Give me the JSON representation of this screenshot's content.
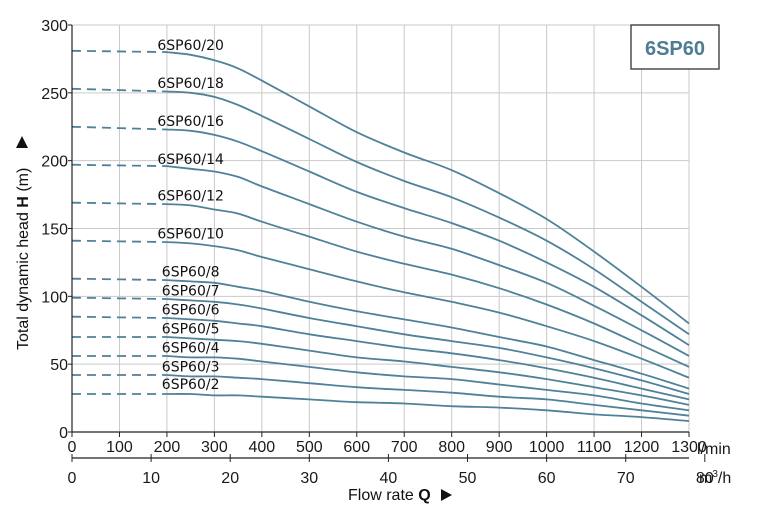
{
  "chart_data": {
    "type": "line",
    "title": "6SP60",
    "ylabel_prefix": "Total dynamic head ",
    "ylabel_bold": "H",
    "ylabel_suffix": " (m)",
    "xlabel_prefix": "Flow rate ",
    "xlabel_bold": "Q",
    "x_unit_lmin": "l/min",
    "x_unit_m3h_base": "m",
    "x_unit_m3h_sup": "3",
    "x_unit_m3h_tail": "/h",
    "xlim_lmin": [
      0,
      1300
    ],
    "ylim": [
      0,
      300
    ],
    "yticks": [
      0,
      50,
      100,
      150,
      200,
      250,
      300
    ],
    "xticks_lmin": [
      0,
      100,
      200,
      300,
      400,
      500,
      600,
      700,
      800,
      900,
      1000,
      1100,
      1200,
      1300
    ],
    "xticks_m3h": [
      0,
      10,
      20,
      30,
      40,
      50,
      60,
      70,
      80
    ],
    "grid": true,
    "line_color": "#4f8198",
    "dashed_until_lmin": 200,
    "series": [
      {
        "name": "6SP60/20",
        "x": [
          0,
          200,
          250,
          300,
          350,
          400,
          500,
          600,
          700,
          800,
          900,
          1000,
          1100,
          1200,
          1300
        ],
        "y": [
          281,
          280,
          278,
          274,
          268,
          259,
          240,
          221,
          206,
          193,
          176,
          157,
          133,
          107,
          80
        ]
      },
      {
        "name": "6SP60/18",
        "x": [
          0,
          200,
          250,
          300,
          350,
          400,
          500,
          600,
          700,
          800,
          900,
          1000,
          1100,
          1200,
          1300
        ],
        "y": [
          253,
          251,
          250,
          247,
          241,
          233,
          216,
          199,
          185,
          173,
          158,
          141,
          120,
          96,
          72
        ]
      },
      {
        "name": "6SP60/16",
        "x": [
          0,
          200,
          250,
          300,
          350,
          400,
          500,
          600,
          700,
          800,
          900,
          1000,
          1100,
          1200,
          1300
        ],
        "y": [
          225,
          223,
          222,
          219,
          214,
          207,
          192,
          177,
          165,
          154,
          141,
          125,
          107,
          86,
          64
        ]
      },
      {
        "name": "6SP60/14",
        "x": [
          0,
          200,
          250,
          300,
          350,
          400,
          500,
          600,
          700,
          800,
          900,
          1000,
          1100,
          1200,
          1300
        ],
        "y": [
          197,
          196,
          194,
          192,
          188,
          181,
          168,
          155,
          144,
          135,
          123,
          110,
          93,
          75,
          56
        ]
      },
      {
        "name": "6SP60/12",
        "x": [
          0,
          200,
          250,
          300,
          350,
          400,
          500,
          600,
          700,
          800,
          900,
          1000,
          1100,
          1200,
          1300
        ],
        "y": [
          169,
          168,
          167,
          164,
          161,
          155,
          144,
          133,
          124,
          116,
          106,
          94,
          80,
          64,
          48
        ]
      },
      {
        "name": "6SP60/10",
        "x": [
          0,
          200,
          250,
          300,
          350,
          400,
          500,
          600,
          700,
          800,
          900,
          1000,
          1100,
          1200,
          1300
        ],
        "y": [
          141,
          140,
          139,
          137,
          134,
          129,
          120,
          111,
          103,
          96,
          88,
          78,
          67,
          54,
          40
        ]
      },
      {
        "name": "6SP60/8",
        "x": [
          0,
          200,
          250,
          300,
          350,
          400,
          500,
          600,
          700,
          800,
          900,
          1000,
          1100,
          1200,
          1300
        ],
        "y": [
          113,
          112,
          111,
          110,
          107,
          104,
          96,
          89,
          83,
          77,
          70,
          63,
          53,
          43,
          32
        ]
      },
      {
        "name": "6SP60/7",
        "x": [
          0,
          200,
          250,
          300,
          350,
          400,
          500,
          600,
          700,
          800,
          900,
          1000,
          1100,
          1200,
          1300
        ],
        "y": [
          99,
          98,
          97,
          96,
          94,
          91,
          84,
          78,
          72,
          67,
          62,
          55,
          47,
          38,
          28
        ]
      },
      {
        "name": "6SP60/6",
        "x": [
          0,
          200,
          250,
          300,
          350,
          400,
          500,
          600,
          700,
          800,
          900,
          1000,
          1100,
          1200,
          1300
        ],
        "y": [
          85,
          84,
          83,
          82,
          80,
          78,
          72,
          67,
          62,
          58,
          53,
          47,
          40,
          32,
          24
        ]
      },
      {
        "name": "6SP60/5",
        "x": [
          0,
          200,
          250,
          300,
          350,
          400,
          500,
          600,
          700,
          800,
          900,
          1000,
          1100,
          1200,
          1300
        ],
        "y": [
          70,
          70,
          69,
          68,
          67,
          65,
          60,
          55,
          52,
          48,
          44,
          39,
          33,
          27,
          20
        ]
      },
      {
        "name": "6SP60/4",
        "x": [
          0,
          200,
          250,
          300,
          350,
          400,
          500,
          600,
          700,
          800,
          900,
          1000,
          1100,
          1200,
          1300
        ],
        "y": [
          56,
          56,
          55,
          55,
          54,
          52,
          48,
          44,
          41,
          39,
          35,
          31,
          27,
          21,
          16
        ]
      },
      {
        "name": "6SP60/3",
        "x": [
          0,
          200,
          250,
          300,
          350,
          400,
          500,
          600,
          700,
          800,
          900,
          1000,
          1100,
          1200,
          1300
        ],
        "y": [
          42,
          42,
          41,
          41,
          40,
          39,
          36,
          33,
          31,
          29,
          26,
          24,
          20,
          16,
          12
        ]
      },
      {
        "name": "6SP60/2",
        "x": [
          0,
          200,
          250,
          300,
          350,
          400,
          500,
          600,
          700,
          800,
          900,
          1000,
          1100,
          1200,
          1300
        ],
        "y": [
          28,
          28,
          28,
          27,
          27,
          26,
          24,
          22,
          21,
          19,
          18,
          16,
          13,
          11,
          8
        ]
      }
    ]
  }
}
